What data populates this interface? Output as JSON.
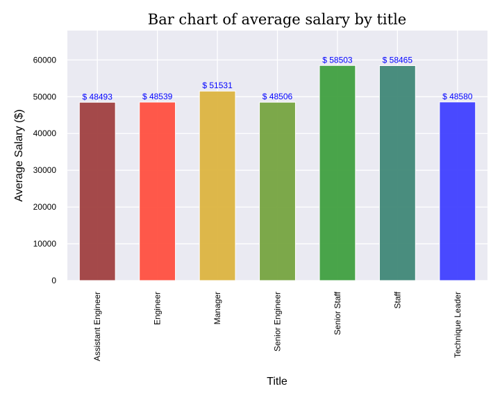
{
  "chart_data": {
    "type": "bar",
    "title": "Bar chart of average salary by title",
    "xlabel": "Title",
    "ylabel": "Average Salary ($)",
    "categories": [
      "Assistant Engineer",
      "Engineer",
      "Manager",
      "Senior Engineer",
      "Senior Staff",
      "Staff",
      "Technique Leader"
    ],
    "values": [
      48493,
      48539,
      51531,
      48506,
      58503,
      58465,
      48580
    ],
    "data_labels": [
      "$ 48493",
      "$ 48539",
      "$ 51531",
      "$ 48506",
      "$ 58503",
      "$ 58465",
      "$ 48580"
    ],
    "colors": [
      "#a04040",
      "#ff5040",
      "#dcb440",
      "#76a440",
      "#40a040",
      "#408877",
      "#4040ff"
    ],
    "yticks": [
      0,
      10000,
      20000,
      30000,
      40000,
      50000,
      60000
    ],
    "ylim": [
      0,
      68000
    ],
    "grid": true,
    "background": "#eaeaf2",
    "label_color": "#0000ff"
  }
}
